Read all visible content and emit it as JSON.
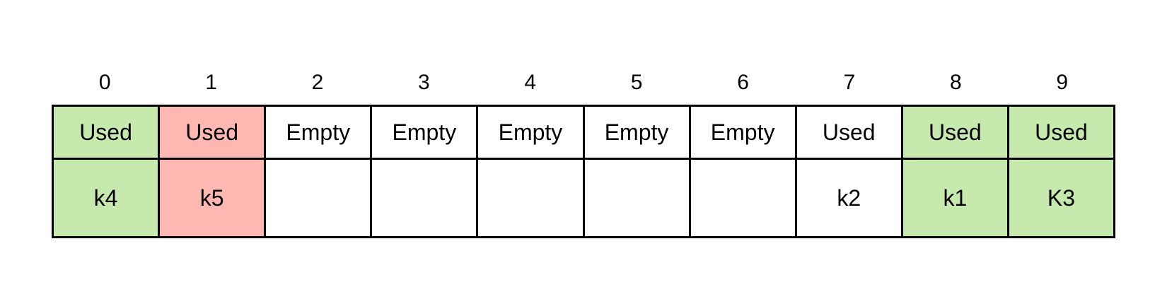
{
  "colors": {
    "green": "#c6e9ad",
    "red": "#feb8b1",
    "white": "#ffffff",
    "border": "#000000"
  },
  "slots": [
    {
      "index": "0",
      "status": "Used",
      "key": "k4",
      "color": "green"
    },
    {
      "index": "1",
      "status": "Used",
      "key": "k5",
      "color": "red"
    },
    {
      "index": "2",
      "status": "Empty",
      "key": "",
      "color": "white"
    },
    {
      "index": "3",
      "status": "Empty",
      "key": "",
      "color": "white"
    },
    {
      "index": "4",
      "status": "Empty",
      "key": "",
      "color": "white"
    },
    {
      "index": "5",
      "status": "Empty",
      "key": "",
      "color": "white"
    },
    {
      "index": "6",
      "status": "Empty",
      "key": "",
      "color": "white"
    },
    {
      "index": "7",
      "status": "Used",
      "key": "k2",
      "color": "white"
    },
    {
      "index": "8",
      "status": "Used",
      "key": "k1",
      "color": "green"
    },
    {
      "index": "9",
      "status": "Used",
      "key": "K3",
      "color": "green"
    }
  ]
}
